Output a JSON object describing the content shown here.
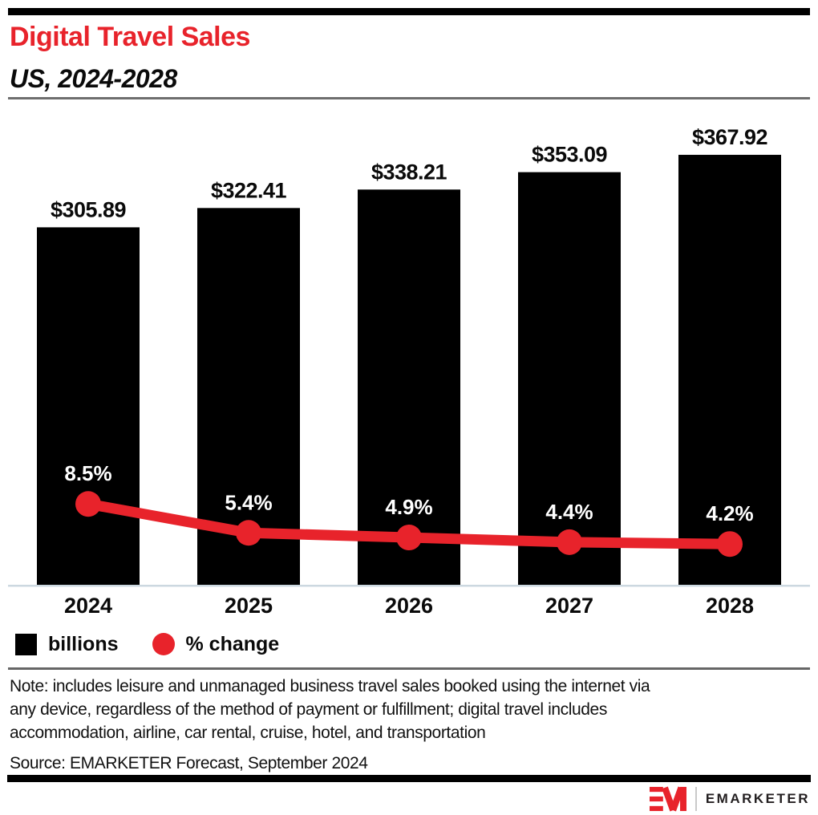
{
  "header": {
    "title": "Digital Travel Sales",
    "subtitle": "US, 2024-2028"
  },
  "chart_data": {
    "type": "bar",
    "title": "Digital Travel Sales",
    "subtitle": "US, 2024-2028",
    "categories": [
      "2024",
      "2025",
      "2026",
      "2027",
      "2028"
    ],
    "series": [
      {
        "name": "billions",
        "type": "bar",
        "unit": "USD billions",
        "values": [
          305.89,
          322.41,
          338.21,
          353.09,
          367.92
        ],
        "data_labels": [
          "$305.89",
          "$322.41",
          "$338.21",
          "$353.09",
          "$367.92"
        ],
        "color": "#000000"
      },
      {
        "name": "% change",
        "type": "line",
        "unit": "percent",
        "values": [
          8.5,
          5.4,
          4.9,
          4.4,
          4.2
        ],
        "data_labels": [
          "8.5%",
          "5.4%",
          "4.9%",
          "4.4%",
          "4.2%"
        ],
        "color": "#e8232b"
      }
    ],
    "legend_position": "bottom-left",
    "grid": false,
    "value_axis_hidden": true,
    "baseline_color": "#ccd8e0"
  },
  "legend": {
    "items": [
      {
        "label": "billions",
        "swatch": "square",
        "color": "#000000"
      },
      {
        "label": "% change",
        "swatch": "circle",
        "color": "#e8232b"
      }
    ]
  },
  "note": {
    "lines": [
      "Note: includes leisure and unmanaged business travel sales booked using the internet via",
      "any device, regardless of the method of payment or fulfillment; digital travel includes",
      "accommodation, airline, car rental, cruise, hotel, and transportation"
    ]
  },
  "source": "Source: EMARKETER Forecast, September 2024",
  "footer": {
    "logo_monogram": "EM",
    "logo_text": "EMARKETER",
    "brand_red": "#e8232b"
  }
}
